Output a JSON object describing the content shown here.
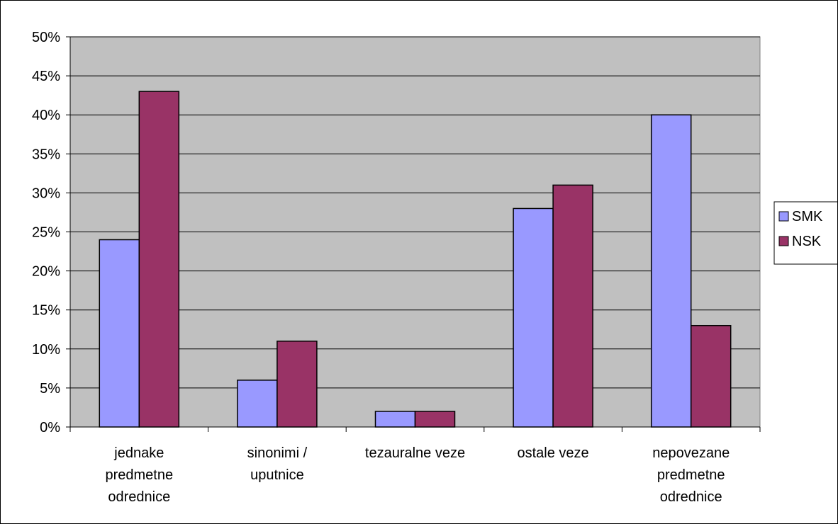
{
  "chart_data": {
    "type": "bar",
    "categories": [
      [
        "jednake",
        "predmetne",
        "odrednice"
      ],
      [
        "sinonimi /",
        "uputnice"
      ],
      [
        "tezauralne veze"
      ],
      [
        "ostale veze"
      ],
      [
        "nepovezane",
        "predmetne",
        "odrednice"
      ]
    ],
    "series": [
      {
        "name": "SMK",
        "values": [
          24,
          6,
          2,
          28,
          40
        ],
        "color": "#9999ff"
      },
      {
        "name": "NSK",
        "values": [
          43,
          11,
          2,
          31,
          13
        ],
        "color": "#993366"
      }
    ],
    "ylim": [
      0,
      50
    ],
    "yticks": [
      0,
      5,
      10,
      15,
      20,
      25,
      30,
      35,
      40,
      45,
      50
    ],
    "ytick_labels": [
      "0%",
      "5%",
      "10%",
      "15%",
      "20%",
      "25%",
      "30%",
      "35%",
      "40%",
      "45%",
      "50%"
    ],
    "title": "",
    "xlabel": "",
    "ylabel": "",
    "grid": true,
    "plot_background": "#c0c0c0",
    "legend_position": "right"
  }
}
